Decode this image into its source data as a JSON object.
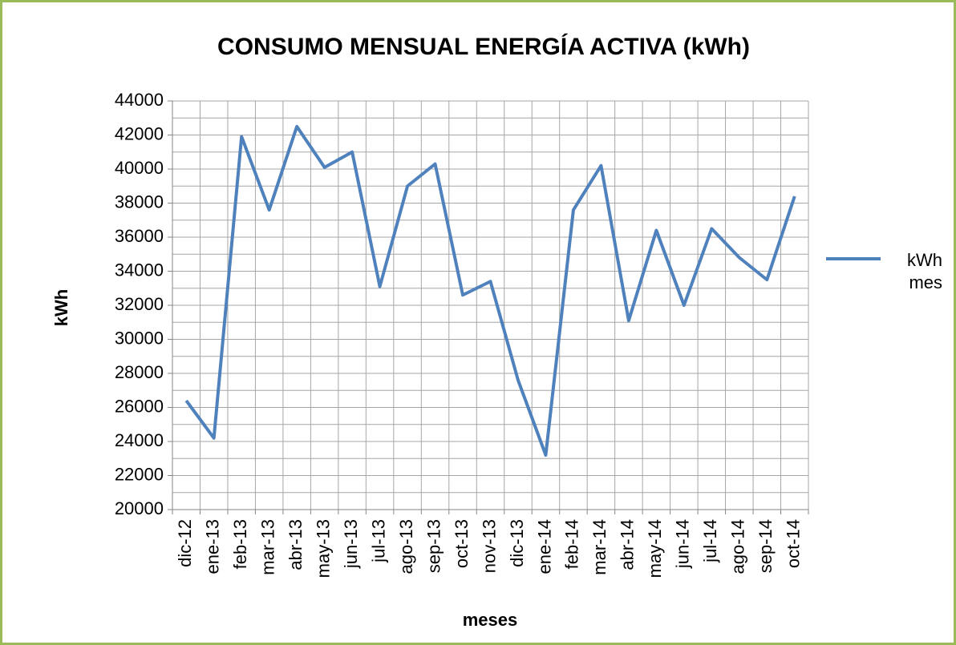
{
  "chart_data": {
    "type": "line",
    "title": "CONSUMO MENSUAL ENERGÍA ACTIVA (kWh)",
    "x_label": "meses",
    "y_label": "kWh",
    "categories": [
      "dic-12",
      "ene-13",
      "feb-13",
      "mar-13",
      "abr-13",
      "may-13",
      "jun-13",
      "jul-13",
      "ago-13",
      "sep-13",
      "oct-13",
      "nov-13",
      "dic-13",
      "ene-14",
      "feb-14",
      "mar-14",
      "abr-14",
      "may-14",
      "jun-14",
      "jul-14",
      "ago-14",
      "sep-14",
      "oct-14"
    ],
    "series": [
      {
        "name": "kWh mes",
        "color": "#4f81bd",
        "values": [
          26400,
          24200,
          41900,
          37600,
          42500,
          40100,
          41000,
          33100,
          39000,
          40300,
          32600,
          33400,
          27600,
          23200,
          37600,
          40200,
          31100,
          36400,
          32000,
          36500,
          34800,
          33500,
          38400
        ]
      }
    ],
    "ylim": [
      20000,
      44000
    ],
    "yticks": [
      20000,
      22000,
      24000,
      26000,
      28000,
      30000,
      32000,
      34000,
      36000,
      38000,
      40000,
      42000,
      44000
    ],
    "minor_yticks": [
      21000,
      23000,
      25000,
      27000,
      29000,
      31000,
      33000,
      35000,
      37000,
      39000,
      41000,
      43000
    ],
    "grid": true,
    "legend": "right"
  }
}
